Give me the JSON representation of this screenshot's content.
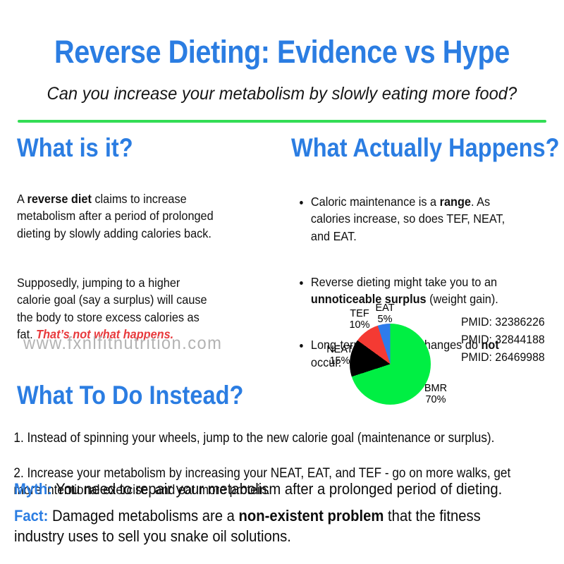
{
  "header": {
    "title": "Reverse Dieting: Evidence vs Hype",
    "subtitle": "Can you increase your metabolism by slowly eating more food?"
  },
  "colors": {
    "heading_blue": "#2b7de2",
    "alert_red": "#e8393c",
    "divider_green": "#33dd55",
    "watermark_gray": "#b3b3b3"
  },
  "what_is_it": {
    "heading": "What is it?",
    "p1": {
      "pre": "A ",
      "bold": "reverse diet",
      "post": " claims to increase\nmetabolism after a period of prolonged\ndieting by slowly adding calories back."
    },
    "p2": {
      "text": "Supposedly, jumping to a higher\ncalorie goal (say a surplus) will cause\nthe body to store excess calories as\nfat. ",
      "emphasis": "That’s not what happens."
    }
  },
  "what_happens": {
    "heading": "What Actually Happens?",
    "bullets": [
      {
        "pre": "Caloric maintenance is a ",
        "bold": "range",
        "post": ". As\ncalories increase, so does TEF, NEAT,\nand EAT."
      },
      {
        "pre": "Reverse dieting might take you to an\n",
        "bold": "unnoticeable surplus",
        "post": " (weight gain)."
      },
      {
        "pre": "Long-term metabolic changes do ",
        "bold": "not",
        "post": "\noccur."
      }
    ]
  },
  "chart_data": {
    "type": "pie",
    "title": "",
    "labels": [
      "BMR",
      "NEAT",
      "TEF",
      "EAT"
    ],
    "values": [
      70,
      15,
      10,
      5
    ],
    "colors": [
      "#00ef43",
      "#000000",
      "#f43a33",
      "#2e7ceb"
    ],
    "start_angle": "12 o'clock",
    "direction": "clockwise",
    "legend_position": "none",
    "slice_labels": [
      {
        "name": "BMR",
        "pct": "70%"
      },
      {
        "name": "NEAT",
        "pct": "15%"
      },
      {
        "name": "TEF",
        "pct": "10%"
      },
      {
        "name": "EAT",
        "pct": "5%"
      }
    ]
  },
  "references": {
    "items": [
      "PMID: 32386226",
      "PMID: 32844188",
      "PMID: 26469988"
    ]
  },
  "watermark": "www.fxnlfitnutrition.com",
  "what_to_do": {
    "heading": "What To Do Instead?",
    "items": [
      "Instead of spinning your wheels, jump to the new calorie goal (maintenance or surplus).",
      "Increase your metabolism by increasing your NEAT, EAT, and TEF - go on more walks, get\nmore intentional exercise, and eat more protein."
    ]
  },
  "myth_fact": {
    "myth_label": "Myth:",
    "myth_text": "You need to repair your metabolism after a prolonged period of dieting.",
    "fact_label": "Fact:",
    "fact_pre": "Damaged metabolisms are a ",
    "fact_bold": "non-existent problem",
    "fact_post": " that the fitness\nindustry uses to sell you snake oil solutions."
  }
}
